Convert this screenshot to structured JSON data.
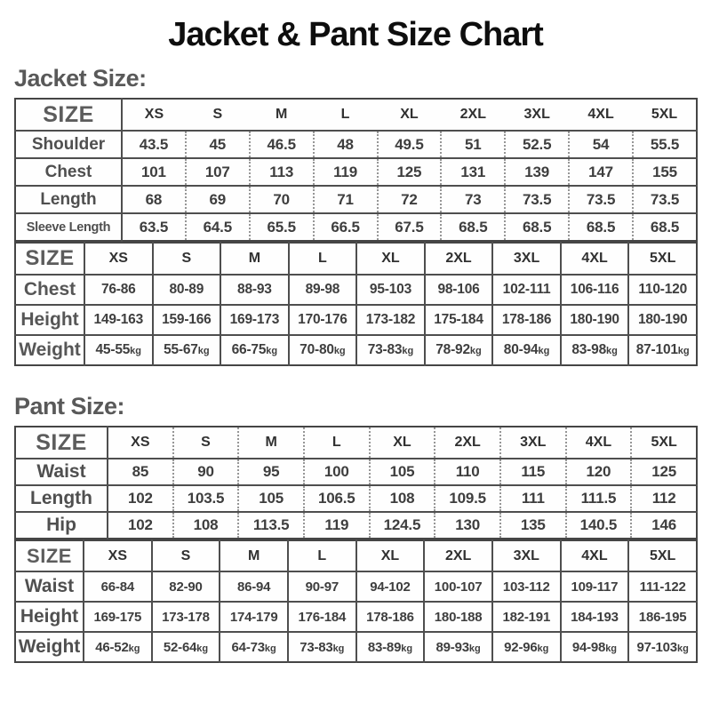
{
  "title": "Jacket & Pant Size Chart",
  "sections": [
    {
      "heading": "Jacket Size:",
      "tables": [
        {
          "corner": "SIZE",
          "sizes": [
            "XS",
            "S",
            "M",
            "L",
            "XL",
            "2XL",
            "3XL",
            "4XL",
            "5XL"
          ],
          "rows": [
            {
              "label": "Shoulder",
              "values": [
                "43.5",
                "45",
                "46.5",
                "48",
                "49.5",
                "51",
                "52.5",
                "54",
                "55.5"
              ]
            },
            {
              "label": "Chest",
              "values": [
                "101",
                "107",
                "113",
                "119",
                "125",
                "131",
                "139",
                "147",
                "155"
              ]
            },
            {
              "label": "Length",
              "values": [
                "68",
                "69",
                "70",
                "71",
                "72",
                "73",
                "73.5",
                "73.5",
                "73.5"
              ]
            },
            {
              "label": "Sleeve Length",
              "values": [
                "63.5",
                "64.5",
                "65.5",
                "66.5",
                "67.5",
                "68.5",
                "68.5",
                "68.5",
                "68.5"
              ]
            }
          ]
        },
        {
          "corner": "SIZE",
          "sizes": [
            "XS",
            "S",
            "M",
            "L",
            "XL",
            "2XL",
            "3XL",
            "4XL",
            "5XL"
          ],
          "rows": [
            {
              "label": "Chest",
              "values": [
                "76-86",
                "80-89",
                "88-93",
                "89-98",
                "95-103",
                "98-106",
                "102-111",
                "106-116",
                "110-120"
              ]
            },
            {
              "label": "Height",
              "values": [
                "149-163",
                "159-166",
                "169-173",
                "170-176",
                "173-182",
                "175-184",
                "178-186",
                "180-190",
                "180-190"
              ]
            },
            {
              "label": "Weight",
              "unit": "kg",
              "values": [
                "45-55",
                "55-67",
                "66-75",
                "70-80",
                "73-83",
                "78-92",
                "80-94",
                "83-98",
                "87-101"
              ]
            }
          ]
        }
      ]
    },
    {
      "heading": "Pant Size:",
      "tables": [
        {
          "corner": "SIZE",
          "sizes": [
            "XS",
            "S",
            "M",
            "L",
            "XL",
            "2XL",
            "3XL",
            "4XL",
            "5XL"
          ],
          "rows": [
            {
              "label": "Waist",
              "values": [
                "85",
                "90",
                "95",
                "100",
                "105",
                "110",
                "115",
                "120",
                "125"
              ]
            },
            {
              "label": "Length",
              "values": [
                "102",
                "103.5",
                "105",
                "106.5",
                "108",
                "109.5",
                "111",
                "111.5",
                "112"
              ]
            },
            {
              "label": "Hip",
              "values": [
                "102",
                "108",
                "113.5",
                "119",
                "124.5",
                "130",
                "135",
                "140.5",
                "146"
              ]
            }
          ]
        },
        {
          "corner": "SIZE",
          "sizes": [
            "XS",
            "S",
            "M",
            "L",
            "XL",
            "2XL",
            "3XL",
            "4XL",
            "5XL"
          ],
          "rows": [
            {
              "label": "Waist",
              "values": [
                "66-84",
                "82-90",
                "86-94",
                "90-97",
                "94-102",
                "100-107",
                "103-112",
                "109-117",
                "111-122"
              ]
            },
            {
              "label": "Height",
              "values": [
                "169-175",
                "173-178",
                "174-179",
                "176-184",
                "178-186",
                "180-188",
                "182-191",
                "184-193",
                "186-195"
              ]
            },
            {
              "label": "Weight",
              "unit": "kg",
              "values": [
                "46-52",
                "52-64",
                "64-73",
                "73-83",
                "83-89",
                "89-93",
                "92-96",
                "94-98",
                "97-103"
              ]
            }
          ]
        }
      ]
    }
  ],
  "colors": {
    "title_text": "#0e0e0e",
    "heading_text": "#595959",
    "table_border": "#4e4e4e",
    "cell_text": "#3e3e3e",
    "background": "#ffffff"
  }
}
